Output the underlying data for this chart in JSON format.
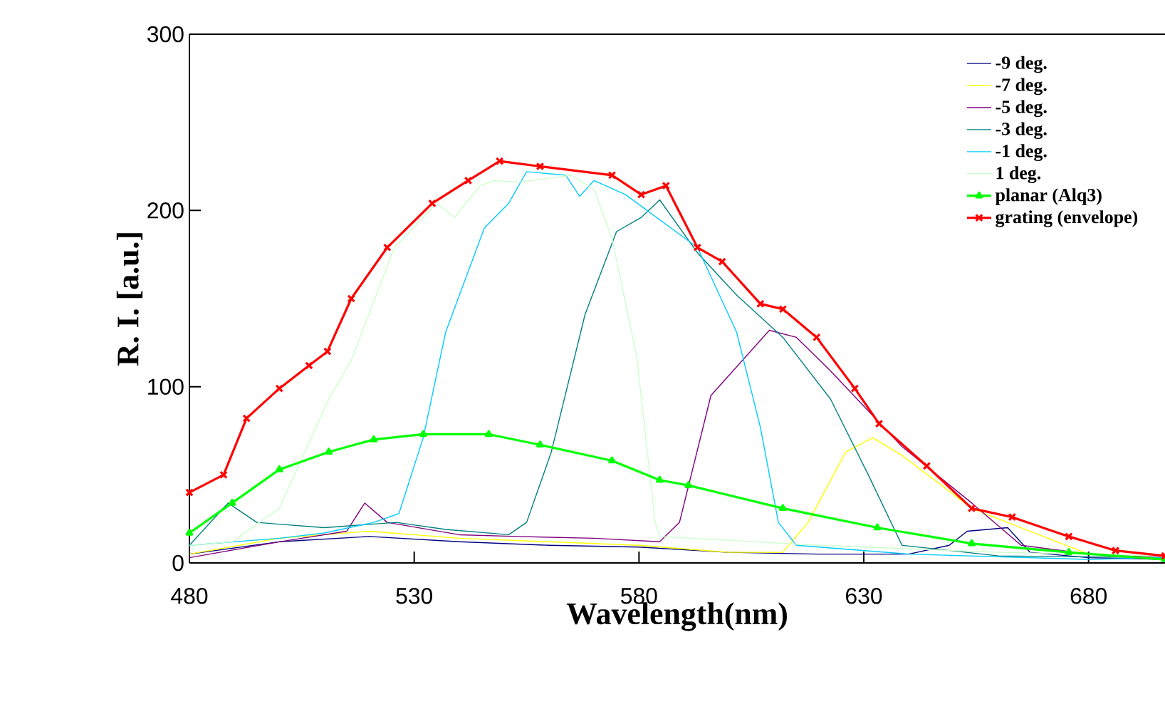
{
  "chart_data": {
    "type": "line",
    "xlabel": "Wavelength(nm)",
    "ylabel": "R. I. [a.u.]",
    "xlim": [
      480,
      697
    ],
    "ylim": [
      0,
      300
    ],
    "xticks": [
      480,
      530,
      580,
      630,
      680
    ],
    "yticks": [
      0,
      100,
      200,
      300
    ],
    "legend": "top right",
    "marker": "none",
    "series": [
      {
        "name": "-9 deg.",
        "color": "#000080",
        "x": [
          480,
          500,
          520,
          540,
          560,
          580,
          600,
          620,
          640,
          649,
          653,
          662,
          667,
          680,
          697
        ],
        "values": [
          5,
          12,
          15,
          12,
          10,
          9,
          6,
          5,
          5,
          10,
          18,
          20,
          6,
          3,
          2
        ]
      },
      {
        "name": "-7 deg.",
        "color": "#ffff00",
        "x": [
          480,
          500,
          520,
          540,
          560,
          580,
          600,
          612,
          617.6,
          626,
          632,
          638.5,
          654,
          665,
          680,
          697
        ],
        "values": [
          5,
          14,
          18,
          14,
          12,
          10,
          6,
          6,
          23,
          63,
          71,
          61,
          31,
          20,
          5,
          2
        ]
      },
      {
        "name": "-5 deg.",
        "color": "#800080",
        "x": [
          480,
          500,
          515,
          519,
          524,
          540,
          553,
          570,
          584.6,
          589,
          596,
          609,
          615,
          622.6,
          638.5,
          654,
          665,
          680,
          697
        ],
        "values": [
          3,
          12,
          18,
          34,
          23,
          16,
          15,
          14,
          12,
          23,
          95,
          132,
          128,
          109,
          66,
          34,
          10,
          5,
          3
        ]
      },
      {
        "name": "-3 deg.",
        "color": "#008080",
        "x": [
          480,
          488.6,
          495,
          500,
          510,
          526,
          537,
          551,
          555,
          560.5,
          568,
          575,
          580.5,
          584.6,
          593,
          601.7,
          612,
          622.6,
          631,
          638.5,
          660,
          697
        ],
        "values": [
          10,
          34,
          23,
          22,
          20,
          23,
          19,
          16,
          23,
          63,
          141,
          188,
          196,
          206,
          176,
          152,
          128,
          93,
          50,
          10,
          4,
          3
        ]
      },
      {
        "name": "-1 deg.",
        "color": "#00ccff",
        "x": [
          480,
          500,
          510,
          521,
          526.6,
          532,
          537,
          545.6,
          551,
          555,
          563.7,
          566.8,
          570,
          577,
          593,
          601.7,
          607,
          611,
          615,
          640,
          680,
          697
        ],
        "values": [
          10,
          14,
          17,
          23,
          28,
          71,
          131,
          190,
          204,
          222,
          220,
          208,
          217,
          209,
          179,
          131,
          77,
          23,
          10,
          5,
          2,
          3
        ]
      },
      {
        "name": "1 deg.",
        "color": "#ccffcc",
        "x": [
          480,
          489.5,
          500,
          511,
          516,
          525.6,
          535,
          539,
          544.6,
          548,
          553,
          565,
          570,
          574,
          579.5,
          583.6,
          584.6,
          620,
          660,
          697
        ],
        "values": [
          10,
          12,
          31,
          93,
          115,
          179,
          204,
          196,
          214,
          217,
          216,
          220,
          212,
          184,
          117,
          23,
          15,
          10,
          6,
          4
        ]
      },
      {
        "name": "planar (Alq3)",
        "color": "#00ff00",
        "marker": "triangle",
        "x": [
          480,
          489.5,
          500,
          511,
          521,
          532,
          546.6,
          558,
          574,
          584.6,
          591,
          612,
          633,
          654,
          675.6,
          697
        ],
        "values": [
          17,
          34,
          53,
          63,
          70,
          73,
          73,
          67,
          58,
          47,
          44,
          31,
          20,
          11,
          6,
          2
        ]
      },
      {
        "name": "grating (envelope)",
        "color": "#ff0000",
        "marker": "cross",
        "x": [
          480,
          487.6,
          492.7,
          500,
          506.6,
          510.7,
          516,
          524,
          534,
          542,
          549,
          558,
          574,
          580.5,
          586,
          593,
          598.5,
          607,
          612,
          619.5,
          628,
          633.4,
          644,
          654,
          663,
          675.6,
          686,
          697
        ],
        "values": [
          40,
          50,
          82,
          99,
          112,
          120,
          150,
          179,
          204,
          217,
          228,
          225,
          220,
          209,
          214,
          179,
          171,
          147,
          144,
          128,
          99,
          79,
          55,
          31,
          26,
          15,
          7,
          4
        ]
      }
    ]
  }
}
